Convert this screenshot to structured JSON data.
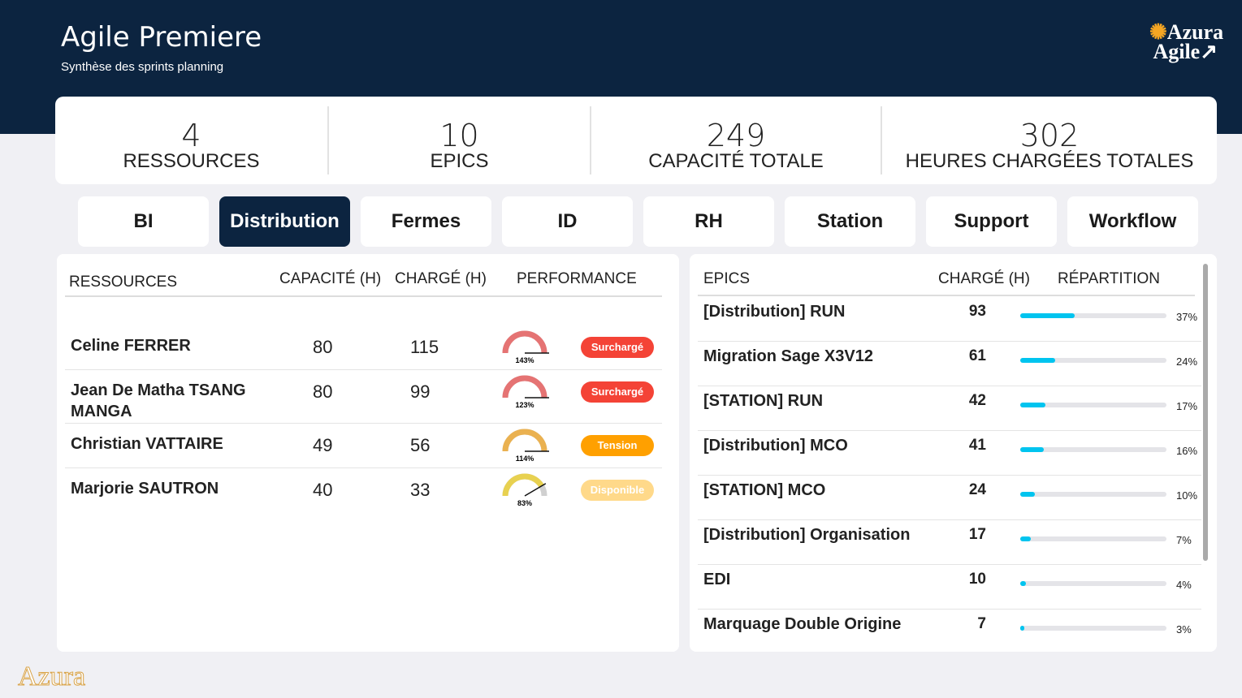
{
  "header": {
    "title": "Agile Premiere",
    "subtitle": "Synthèse des sprints planning",
    "logo": "Azura Agile"
  },
  "kpis": [
    {
      "value": "4",
      "label": "RESSOURCES"
    },
    {
      "value": "10",
      "label": "EPICS"
    },
    {
      "value": "249",
      "label": "CAPACITÉ TOTALE"
    },
    {
      "value": "302",
      "label": "HEURES CHARGÉES TOTALES"
    }
  ],
  "tabs": [
    {
      "label": "BI"
    },
    {
      "label": "Distribution",
      "active": true
    },
    {
      "label": "Fermes"
    },
    {
      "label": "ID"
    },
    {
      "label": "RH"
    },
    {
      "label": "Station"
    },
    {
      "label": "Support"
    },
    {
      "label": "Workflow"
    }
  ],
  "resources": {
    "headers": {
      "name": "RESSOURCES",
      "capacity": "CAPACITÉ (H)",
      "charged": "CHARGÉ (H)",
      "performance": "PERFORMANCE"
    },
    "rows": [
      {
        "name": "Celine FERRER",
        "capacity": "80",
        "charged": "115",
        "perf": 143,
        "perf_label": "143%",
        "status": "Surchargé",
        "color": "#f44336"
      },
      {
        "name": "Jean De Matha TSANG MANGA",
        "capacity": "80",
        "charged": "99",
        "perf": 123,
        "perf_label": "123%",
        "status": "Surchargé",
        "color": "#f44336"
      },
      {
        "name": "Christian VATTAIRE",
        "capacity": "49",
        "charged": "56",
        "perf": 114,
        "perf_label": "114%",
        "status": "Tension",
        "color": "#ffa000"
      },
      {
        "name": "Marjorie SAUTRON",
        "capacity": "40",
        "charged": "33",
        "perf": 83,
        "perf_label": "83%",
        "status": "Disponible",
        "color": "#ffd98a"
      }
    ]
  },
  "epics": {
    "headers": {
      "name": "EPICS",
      "charged": "CHARGÉ (H)",
      "split": "RÉPARTITION"
    },
    "rows": [
      {
        "name": "[Distribution] RUN",
        "charged": "93",
        "pct": 37
      },
      {
        "name": "Migration Sage X3V12",
        "charged": "61",
        "pct": 24
      },
      {
        "name": "[STATION] RUN",
        "charged": "42",
        "pct": 17
      },
      {
        "name": "[Distribution] MCO",
        "charged": "41",
        "pct": 16
      },
      {
        "name": "[STATION] MCO",
        "charged": "24",
        "pct": 10
      },
      {
        "name": "[Distribution] Organisation",
        "charged": "17",
        "pct": 7
      },
      {
        "name": "EDI",
        "charged": "10",
        "pct": 4
      },
      {
        "name": "Marquage Double Origine",
        "charged": "7",
        "pct": 3
      }
    ]
  },
  "footer": {
    "logo": "Azura"
  }
}
